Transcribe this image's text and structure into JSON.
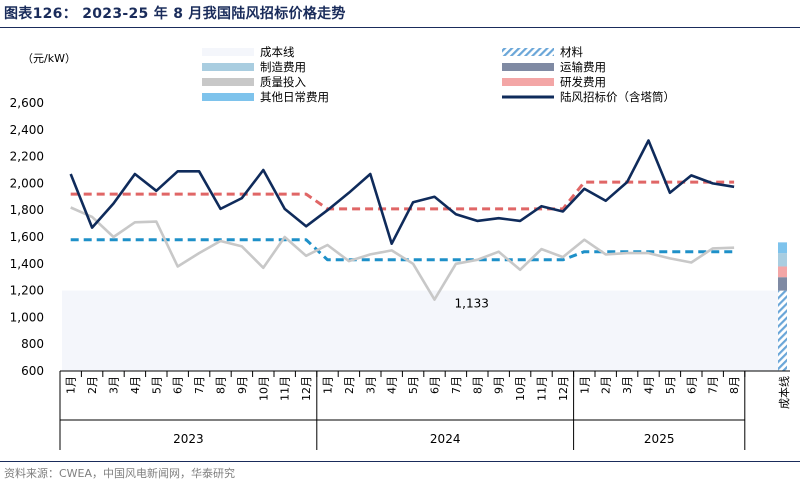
{
  "title": "图表126： 2023-25 年 8 月我国陆风招标价格走势",
  "source": "资料来源：CWEA，中国风电新闻网，华泰研究",
  "chart_data": {
    "type": "line",
    "ylabel": "（元/kW）",
    "ylim": [
      600,
      2600
    ],
    "yticks": [
      600,
      800,
      1000,
      1200,
      1400,
      1600,
      1800,
      2000,
      2200,
      2400,
      2600
    ],
    "ytick_labels": [
      "600",
      "800",
      "1,000",
      "1,200",
      "1,400",
      "1,600",
      "1,800",
      "2,000",
      "2,200",
      "2,400",
      "2,600"
    ],
    "categories": [
      "1月",
      "2月",
      "3月",
      "4月",
      "5月",
      "6月",
      "7月",
      "8月",
      "9月",
      "10月",
      "11月",
      "12月",
      "1月",
      "2月",
      "3月",
      "4月",
      "5月",
      "6月",
      "7月",
      "8月",
      "9月",
      "10月",
      "11月",
      "12月",
      "1月",
      "2月",
      "3月",
      "4月",
      "5月",
      "6月",
      "7月",
      "8月"
    ],
    "years": [
      {
        "label": "2023",
        "start": 0,
        "count": 12
      },
      {
        "label": "2024",
        "start": 12,
        "count": 12
      },
      {
        "label": "2025",
        "start": 24,
        "count": 8
      }
    ],
    "extra_category": "成本线",
    "series": [
      {
        "name": "陆风招标价（含塔筒）",
        "color": "#0f2b5b",
        "style": "solid",
        "values": [
          2070,
          1670,
          1850,
          2070,
          1945,
          2090,
          2090,
          1810,
          1890,
          2100,
          1810,
          1680,
          1800,
          1930,
          2070,
          1550,
          1860,
          1900,
          1770,
          1720,
          1740,
          1720,
          1830,
          1790,
          1960,
          1870,
          2010,
          2320,
          1930,
          2060,
          2000,
          1975
        ]
      },
      {
        "name": "研发费用",
        "color": "#e06666",
        "style": "dashed",
        "values": [
          1920,
          1920,
          1920,
          1920,
          1920,
          1920,
          1920,
          1920,
          1920,
          1920,
          1920,
          1920,
          1810,
          1810,
          1810,
          1810,
          1810,
          1810,
          1810,
          1810,
          1810,
          1810,
          1810,
          1810,
          2010,
          2010,
          2010,
          2010,
          2010,
          2010,
          2010,
          2010
        ]
      },
      {
        "name": "质量投入",
        "color": "#c8c8c8",
        "style": "solid",
        "values": [
          1820,
          1750,
          1600,
          1710,
          1715,
          1380,
          1480,
          1570,
          1530,
          1370,
          1600,
          1460,
          1540,
          1420,
          1470,
          1500,
          1400,
          1133,
          1400,
          1430,
          1490,
          1355,
          1510,
          1450,
          1580,
          1470,
          1480,
          1480,
          1440,
          1410,
          1515,
          1520
        ]
      },
      {
        "name": "制造费用",
        "color": "#1e90c8",
        "style": "dashed",
        "values": [
          1580,
          1580,
          1580,
          1580,
          1580,
          1580,
          1580,
          1580,
          1580,
          1580,
          1580,
          1580,
          1430,
          1430,
          1430,
          1430,
          1430,
          1430,
          1430,
          1430,
          1430,
          1430,
          1430,
          1430,
          1490,
          1490,
          1490,
          1490,
          1490,
          1490,
          1490,
          1490
        ]
      }
    ],
    "annotations": [
      {
        "text": "1,133",
        "index": 17,
        "value": 1133
      }
    ],
    "cost_line_segments": [
      {
        "name": "成本线",
        "value": 1200
      },
      {
        "name": "材料",
        "value": 600
      },
      {
        "name": "运输费用",
        "value": 100
      },
      {
        "name": "研发费用",
        "value": 80
      },
      {
        "name": "制造费用",
        "value": 100
      },
      {
        "name": "其他日常费用",
        "value": 80
      }
    ],
    "legend": {
      "placement": "top",
      "items": [
        {
          "name": "成本线",
          "kind": "box",
          "color": "#f4f6fb"
        },
        {
          "name": "材料",
          "kind": "hatch",
          "color": "#6aa6d8"
        },
        {
          "name": "制造费用",
          "kind": "box",
          "color": "#a9cde0"
        },
        {
          "name": "运输费用",
          "kind": "box",
          "color": "#7f8aa3"
        },
        {
          "name": "质量投入",
          "kind": "box",
          "color": "#c8c8c8"
        },
        {
          "name": "研发费用",
          "kind": "box",
          "color": "#f3a6a6"
        },
        {
          "name": "其他日常费用",
          "kind": "box",
          "color": "#7ec3ec"
        },
        {
          "name": "陆风招标价（含塔筒）",
          "kind": "line",
          "color": "#0f2b5b"
        }
      ]
    }
  }
}
